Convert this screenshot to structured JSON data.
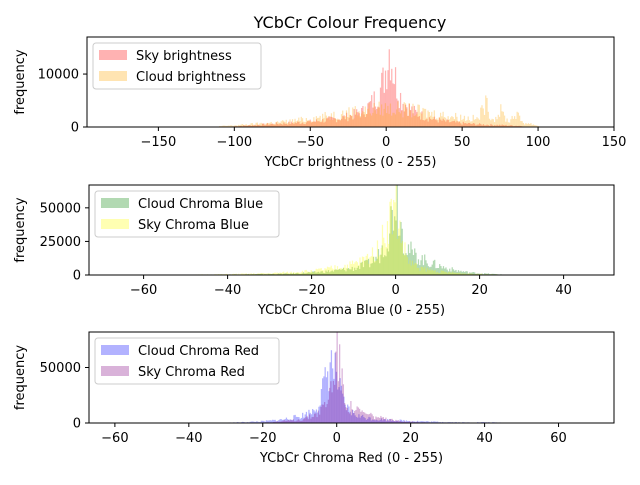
{
  "figure_title": "YCbCr Colour Frequency",
  "chart_data": [
    {
      "type": "histogram",
      "xlabel": "YCbCr brightness (0 - 255)",
      "ylabel": "frequency",
      "xlim": [
        -197,
        150
      ],
      "ylim": [
        0,
        17000
      ],
      "xticks": [
        -150,
        -100,
        -50,
        0,
        50,
        100,
        150
      ],
      "yticks": [
        0,
        10000
      ],
      "legend_position": "upper-left",
      "series": [
        {
          "name": "Sky brightness",
          "color": "#ff0000",
          "range": [
            -100,
            90
          ],
          "bins": [
            {
              "x": -100,
              "y": 150
            },
            {
              "x": -90,
              "y": 300
            },
            {
              "x": -80,
              "y": 500
            },
            {
              "x": -70,
              "y": 650
            },
            {
              "x": -60,
              "y": 800
            },
            {
              "x": -50,
              "y": 1000
            },
            {
              "x": -40,
              "y": 1300
            },
            {
              "x": -30,
              "y": 1700
            },
            {
              "x": -25,
              "y": 2000
            },
            {
              "x": -20,
              "y": 2500
            },
            {
              "x": -15,
              "y": 3000
            },
            {
              "x": -10,
              "y": 4500
            },
            {
              "x": -5,
              "y": 6500
            },
            {
              "x": -2,
              "y": 9000
            },
            {
              "x": 0,
              "y": 12000
            },
            {
              "x": 2,
              "y": 15500
            },
            {
              "x": 4,
              "y": 11000
            },
            {
              "x": 7,
              "y": 7500
            },
            {
              "x": 10,
              "y": 5000
            },
            {
              "x": 15,
              "y": 3500
            },
            {
              "x": 20,
              "y": 2500
            },
            {
              "x": 25,
              "y": 2000
            },
            {
              "x": 30,
              "y": 1500
            },
            {
              "x": 40,
              "y": 1000
            },
            {
              "x": 50,
              "y": 700
            },
            {
              "x": 60,
              "y": 500
            },
            {
              "x": 70,
              "y": 400
            },
            {
              "x": 80,
              "y": 300
            },
            {
              "x": 90,
              "y": 200
            }
          ]
        },
        {
          "name": "Cloud brightness",
          "color": "#ffa500",
          "range": [
            -110,
            100
          ],
          "bins": [
            {
              "x": -110,
              "y": 150
            },
            {
              "x": -100,
              "y": 300
            },
            {
              "x": -90,
              "y": 500
            },
            {
              "x": -80,
              "y": 700
            },
            {
              "x": -70,
              "y": 900
            },
            {
              "x": -60,
              "y": 1200
            },
            {
              "x": -50,
              "y": 1600
            },
            {
              "x": -40,
              "y": 2000
            },
            {
              "x": -30,
              "y": 2500
            },
            {
              "x": -20,
              "y": 3000
            },
            {
              "x": -10,
              "y": 3300
            },
            {
              "x": 0,
              "y": 3500
            },
            {
              "x": 10,
              "y": 3300
            },
            {
              "x": 20,
              "y": 3000
            },
            {
              "x": 30,
              "y": 2500
            },
            {
              "x": 40,
              "y": 2100
            },
            {
              "x": 50,
              "y": 1800
            },
            {
              "x": 60,
              "y": 1500
            },
            {
              "x": 65,
              "y": 4500
            },
            {
              "x": 70,
              "y": 1300
            },
            {
              "x": 75,
              "y": 3000
            },
            {
              "x": 80,
              "y": 1000
            },
            {
              "x": 85,
              "y": 2500
            },
            {
              "x": 90,
              "y": 800
            },
            {
              "x": 95,
              "y": 600
            },
            {
              "x": 100,
              "y": 200
            }
          ]
        }
      ]
    },
    {
      "type": "histogram",
      "xlabel": "YCbCr Chroma Blue (0 - 255)",
      "ylabel": "frequency",
      "xlim": [
        -73,
        52
      ],
      "ylim": [
        0,
        67000
      ],
      "xticks": [
        -60,
        -40,
        -20,
        0,
        20,
        40
      ],
      "yticks": [
        0,
        25000,
        50000
      ],
      "legend_position": "upper-left",
      "series": [
        {
          "name": "Cloud Chroma Blue",
          "color": "#008000",
          "range": [
            -45,
            25
          ],
          "bins": [
            {
              "x": -45,
              "y": 200
            },
            {
              "x": -35,
              "y": 500
            },
            {
              "x": -25,
              "y": 1000
            },
            {
              "x": -20,
              "y": 1800
            },
            {
              "x": -15,
              "y": 3000
            },
            {
              "x": -10,
              "y": 5000
            },
            {
              "x": -6,
              "y": 9000
            },
            {
              "x": -4,
              "y": 15000
            },
            {
              "x": -2,
              "y": 28000
            },
            {
              "x": -1,
              "y": 45000
            },
            {
              "x": 0,
              "y": 62000
            },
            {
              "x": 1,
              "y": 40000
            },
            {
              "x": 2,
              "y": 25000
            },
            {
              "x": 4,
              "y": 15000
            },
            {
              "x": 6,
              "y": 12000
            },
            {
              "x": 8,
              "y": 9000
            },
            {
              "x": 10,
              "y": 7000
            },
            {
              "x": 12,
              "y": 5000
            },
            {
              "x": 14,
              "y": 3500
            },
            {
              "x": 17,
              "y": 2000
            },
            {
              "x": 20,
              "y": 1200
            },
            {
              "x": 25,
              "y": 400
            }
          ]
        },
        {
          "name": "Sky Chroma Blue",
          "color": "#ffff00",
          "range": [
            -50,
            25
          ],
          "bins": [
            {
              "x": -50,
              "y": 200
            },
            {
              "x": -40,
              "y": 600
            },
            {
              "x": -30,
              "y": 1200
            },
            {
              "x": -25,
              "y": 2000
            },
            {
              "x": -20,
              "y": 3000
            },
            {
              "x": -15,
              "y": 5000
            },
            {
              "x": -10,
              "y": 8000
            },
            {
              "x": -7,
              "y": 12000
            },
            {
              "x": -5,
              "y": 18000
            },
            {
              "x": -3,
              "y": 28000
            },
            {
              "x": -2,
              "y": 38000
            },
            {
              "x": -1,
              "y": 45000
            },
            {
              "x": 0,
              "y": 50000
            },
            {
              "x": 1,
              "y": 30000
            },
            {
              "x": 2,
              "y": 18000
            },
            {
              "x": 3,
              "y": 10000
            },
            {
              "x": 5,
              "y": 6000
            },
            {
              "x": 8,
              "y": 3500
            },
            {
              "x": 12,
              "y": 2000
            },
            {
              "x": 16,
              "y": 1200
            },
            {
              "x": 20,
              "y": 800
            },
            {
              "x": 25,
              "y": 400
            }
          ]
        }
      ]
    },
    {
      "type": "histogram",
      "xlabel": "YCbCr Chroma Red (0 - 255)",
      "ylabel": "frequency",
      "xlim": [
        -67,
        75
      ],
      "ylim": [
        0,
        82000
      ],
      "xticks": [
        -60,
        -40,
        -20,
        0,
        20,
        40,
        60
      ],
      "yticks": [
        0,
        50000
      ],
      "legend_position": "upper-left",
      "series": [
        {
          "name": "Cloud Chroma Red",
          "color": "#0000ff",
          "range": [
            -30,
            45
          ],
          "bins": [
            {
              "x": -30,
              "y": 300
            },
            {
              "x": -25,
              "y": 800
            },
            {
              "x": -20,
              "y": 1500
            },
            {
              "x": -15,
              "y": 3000
            },
            {
              "x": -10,
              "y": 6000
            },
            {
              "x": -7,
              "y": 10000
            },
            {
              "x": -5,
              "y": 18000
            },
            {
              "x": -3,
              "y": 40000
            },
            {
              "x": -2,
              "y": 55000
            },
            {
              "x": -1,
              "y": 50000
            },
            {
              "x": 0,
              "y": 38000
            },
            {
              "x": 1,
              "y": 25000
            },
            {
              "x": 2,
              "y": 15000
            },
            {
              "x": 4,
              "y": 9000
            },
            {
              "x": 6,
              "y": 6000
            },
            {
              "x": 10,
              "y": 3500
            },
            {
              "x": 15,
              "y": 2500
            },
            {
              "x": 20,
              "y": 1800
            },
            {
              "x": 25,
              "y": 1200
            },
            {
              "x": 30,
              "y": 800
            },
            {
              "x": 35,
              "y": 500
            },
            {
              "x": 40,
              "y": 700
            },
            {
              "x": 45,
              "y": 300
            }
          ]
        },
        {
          "name": "Sky Chroma Red",
          "color": "#800080",
          "range": [
            -20,
            25
          ],
          "bins": [
            {
              "x": -20,
              "y": 500
            },
            {
              "x": -15,
              "y": 1500
            },
            {
              "x": -10,
              "y": 3000
            },
            {
              "x": -7,
              "y": 6000
            },
            {
              "x": -5,
              "y": 10000
            },
            {
              "x": -3,
              "y": 18000
            },
            {
              "x": -2,
              "y": 28000
            },
            {
              "x": -1,
              "y": 45000
            },
            {
              "x": 0,
              "y": 70000
            },
            {
              "x": 1,
              "y": 40000
            },
            {
              "x": 2,
              "y": 25000
            },
            {
              "x": 3,
              "y": 15000
            },
            {
              "x": 5,
              "y": 12000
            },
            {
              "x": 7,
              "y": 9000
            },
            {
              "x": 10,
              "y": 6000
            },
            {
              "x": 13,
              "y": 3500
            },
            {
              "x": 16,
              "y": 2000
            },
            {
              "x": 20,
              "y": 1200
            },
            {
              "x": 25,
              "y": 500
            }
          ]
        }
      ]
    }
  ]
}
